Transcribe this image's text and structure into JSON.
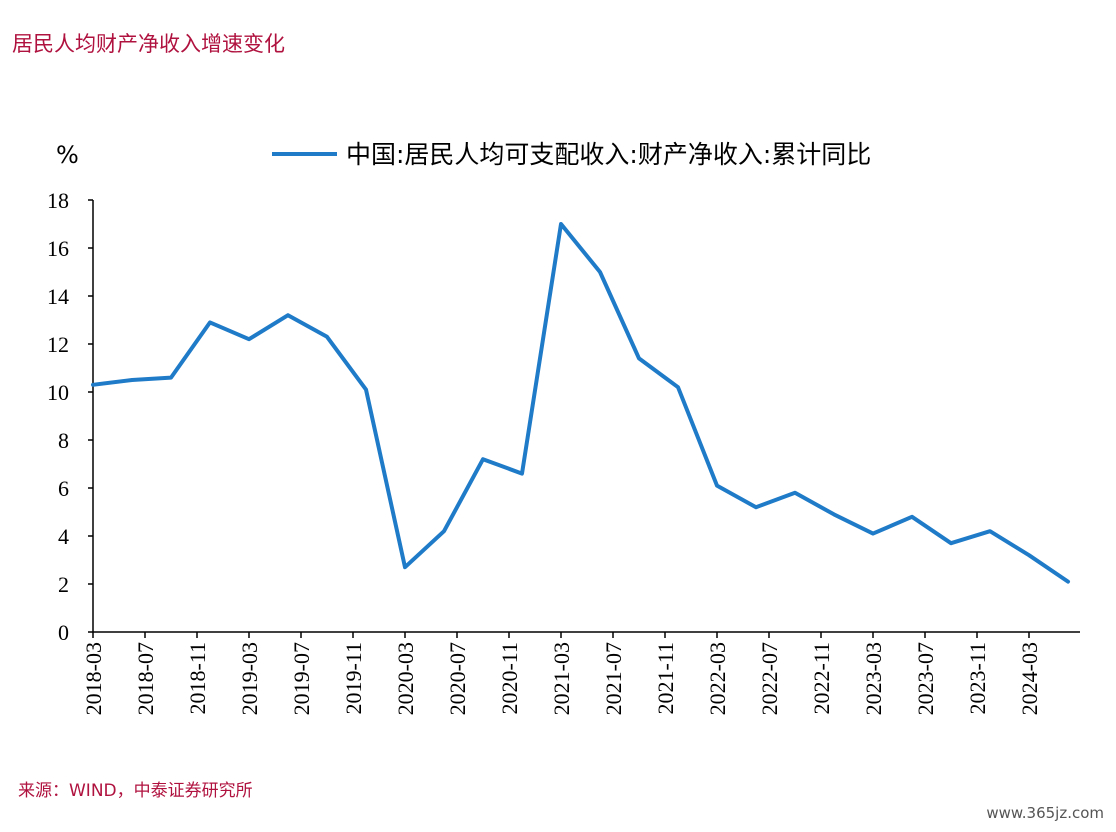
{
  "header": {
    "title": "居民人均财产净收入增速变化"
  },
  "footer": {
    "source": "来源：WIND，中泰证券研究所",
    "watermark": "www.365jz.com"
  },
  "chart_data": {
    "type": "line",
    "unit_label": "%",
    "legend_position": "top",
    "ylim": [
      0,
      18
    ],
    "yticks": [
      0,
      2,
      4,
      6,
      8,
      10,
      12,
      14,
      16,
      18
    ],
    "xtick_labels": [
      "2018-03",
      "2018-07",
      "2018-11",
      "2019-03",
      "2019-07",
      "2019-11",
      "2020-03",
      "2020-07",
      "2020-11",
      "2021-03",
      "2021-07",
      "2021-11",
      "2022-03",
      "2022-07",
      "2022-11",
      "2023-03",
      "2023-07",
      "2023-11",
      "2024-03"
    ],
    "x": [
      "2018-03",
      "2018-06",
      "2018-09",
      "2018-12",
      "2019-03",
      "2019-06",
      "2019-09",
      "2019-12",
      "2020-03",
      "2020-06",
      "2020-09",
      "2020-12",
      "2021-03",
      "2021-06",
      "2021-09",
      "2021-12",
      "2022-03",
      "2022-06",
      "2022-09",
      "2022-12",
      "2023-03",
      "2023-06",
      "2023-09",
      "2023-12",
      "2024-03",
      "2024-06"
    ],
    "series": [
      {
        "name": "中国:居民人均可支配收入:财产净收入:累计同比",
        "color": "#1f7bc8",
        "values": [
          10.3,
          10.5,
          10.6,
          12.9,
          12.2,
          13.2,
          12.3,
          10.1,
          2.7,
          4.2,
          7.2,
          6.6,
          17.0,
          15.0,
          11.4,
          10.2,
          6.1,
          5.2,
          5.8,
          4.9,
          4.1,
          4.8,
          3.7,
          4.2,
          3.2,
          2.1
        ]
      }
    ]
  }
}
